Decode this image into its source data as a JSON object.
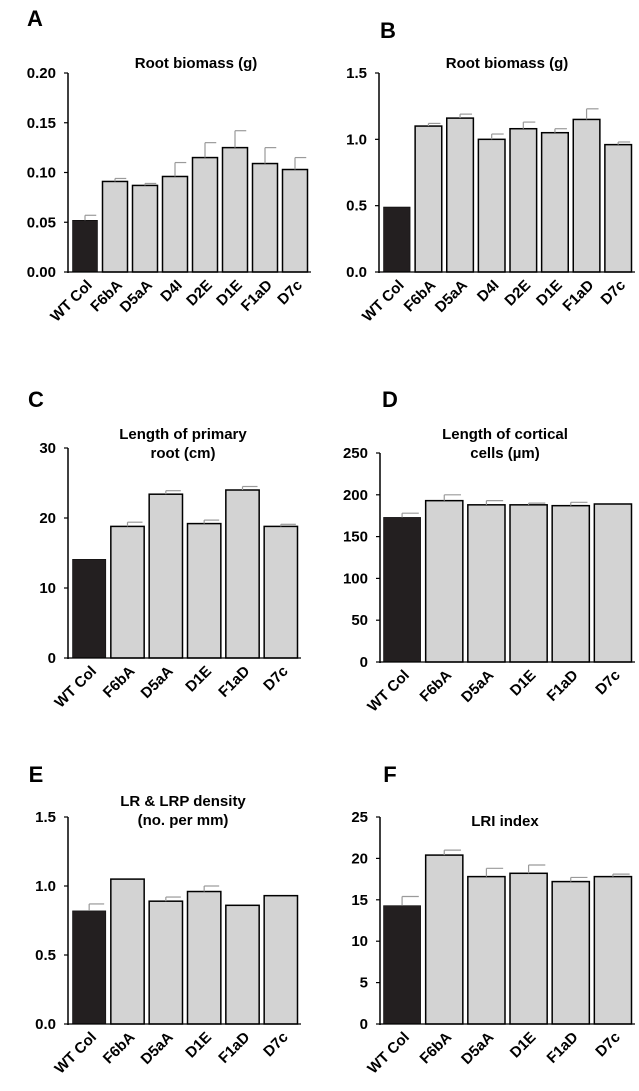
{
  "figure": {
    "colors": {
      "control": "#231f20",
      "mutant": "#d3d3d3",
      "outline": "#000000",
      "error": "#9a9a9a"
    }
  },
  "chart_data": [
    {
      "panel": "A",
      "type": "bar",
      "title": [
        "Root biomass (g)"
      ],
      "categories": [
        "WT Col",
        "F6bA",
        "D5aA",
        "D4I",
        "D2E",
        "D1E",
        "F1aD",
        "D7c"
      ],
      "values": [
        0.052,
        0.091,
        0.087,
        0.096,
        0.115,
        0.125,
        0.109,
        0.103
      ],
      "errors": [
        0.005,
        0.003,
        0.002,
        0.014,
        0.015,
        0.017,
        0.016,
        0.012
      ],
      "yticks": [
        0,
        0.05,
        0.1,
        0.15,
        0.2
      ],
      "ytick_labels": [
        "0.00",
        "0.05",
        "0.10",
        "0.15",
        "0.20"
      ],
      "ylim": [
        0,
        0.2
      ]
    },
    {
      "panel": "B",
      "type": "bar",
      "title": [
        "Root biomass (g)"
      ],
      "categories": [
        "WT Col",
        "F6bA",
        "D5aA",
        "D4I",
        "D2E",
        "D1E",
        "F1aD",
        "D7c"
      ],
      "values": [
        0.49,
        1.1,
        1.16,
        1.0,
        1.08,
        1.05,
        1.15,
        0.96
      ],
      "errors": [
        0.0,
        0.02,
        0.03,
        0.04,
        0.05,
        0.03,
        0.08,
        0.02
      ],
      "yticks": [
        0,
        0.5,
        1.0,
        1.5
      ],
      "ytick_labels": [
        "0.0",
        "0.5",
        "1.0",
        "1.5"
      ],
      "ylim": [
        0,
        1.5
      ]
    },
    {
      "panel": "C",
      "type": "bar",
      "title": [
        "Length of primary",
        "root (cm)"
      ],
      "categories": [
        "WT Col",
        "F6bA",
        "D5aA",
        "D1E",
        "F1aD",
        "D7c"
      ],
      "values": [
        14.1,
        18.8,
        23.4,
        19.2,
        24.0,
        18.8
      ],
      "errors": [
        0.0,
        0.6,
        0.5,
        0.5,
        0.5,
        0.3
      ],
      "yticks": [
        0,
        10,
        20,
        30
      ],
      "ytick_labels": [
        "0",
        "10",
        "20",
        "30"
      ],
      "ylim": [
        0,
        30
      ]
    },
    {
      "panel": "D",
      "type": "bar",
      "title": [
        "Length of cortical",
        "cells (µm)"
      ],
      "categories": [
        "WT Col",
        "F6bA",
        "D5aA",
        "D1E",
        "F1aD",
        "D7c"
      ],
      "values": [
        173,
        193,
        188,
        188,
        187,
        189
      ],
      "errors": [
        5,
        7,
        5,
        2,
        4,
        0
      ],
      "yticks": [
        0,
        50,
        100,
        150,
        200,
        250
      ],
      "ytick_labels": [
        "0",
        "50",
        "100",
        "150",
        "200",
        "250"
      ],
      "ylim": [
        0,
        250
      ]
    },
    {
      "panel": "E",
      "type": "bar",
      "title": [
        "LR & LRP density",
        "(no. per mm)"
      ],
      "categories": [
        "WT Col",
        "F6bA",
        "D5aA",
        "D1E",
        "F1aD",
        "D7c"
      ],
      "values": [
        0.82,
        1.05,
        0.89,
        0.96,
        0.86,
        0.93
      ],
      "errors": [
        0.05,
        0.0,
        0.03,
        0.04,
        0.0,
        0.0
      ],
      "yticks": [
        0,
        0.5,
        1.0,
        1.5
      ],
      "ytick_labels": [
        "0.0",
        "0.5",
        "1.0",
        "1.5"
      ],
      "ylim": [
        0,
        1.5
      ]
    },
    {
      "panel": "F",
      "type": "bar",
      "title": [
        "LRI index"
      ],
      "categories": [
        "WT Col",
        "F6bA",
        "D5aA",
        "D1E",
        "F1aD",
        "D7c"
      ],
      "values": [
        14.3,
        20.4,
        17.8,
        18.2,
        17.2,
        17.8
      ],
      "errors": [
        1.1,
        0.6,
        1.0,
        1.0,
        0.5,
        0.3
      ],
      "yticks": [
        0,
        5,
        10,
        15,
        20,
        25
      ],
      "ytick_labels": [
        "0",
        "5",
        "10",
        "15",
        "20",
        "25"
      ],
      "ylim": [
        0,
        25
      ]
    }
  ]
}
